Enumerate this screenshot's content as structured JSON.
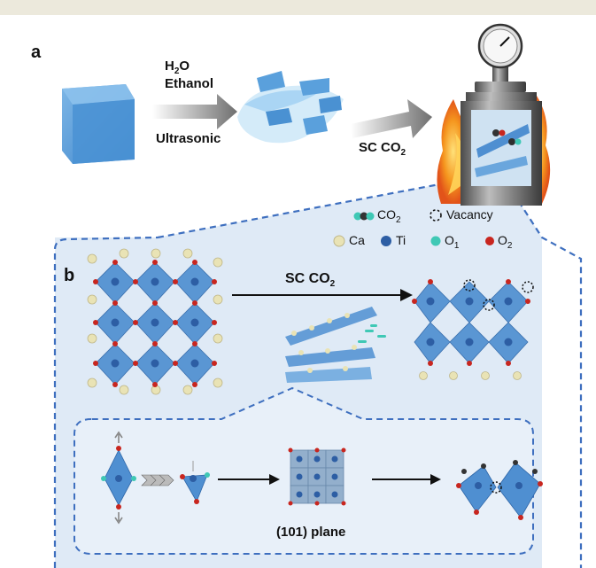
{
  "panels": {
    "a": "a",
    "b": "b"
  },
  "step1": {
    "reagent1_main": "H",
    "reagent1_sub": "2",
    "reagent1_tail": "O",
    "reagent2": "Ethanol",
    "method": "Ultrasonic"
  },
  "step2": {
    "label_main": "SC CO",
    "label_sub": "2"
  },
  "panel_b": {
    "arrow_main": "SC CO",
    "arrow_sub": "2",
    "plane_label": "(101) plane"
  },
  "legend": {
    "co2_main": "CO",
    "co2_sub": "2",
    "vacancy": "Vacancy",
    "ca": "Ca",
    "ti": "Ti",
    "o1_main": "O",
    "o1_sub": "1",
    "o2_main": "O",
    "o2_sub": "2"
  },
  "colors": {
    "cube": "#5b9ed8",
    "octahedron": "#4f8fd1",
    "ca": "#e9e3b5",
    "ti": "#2d5ea4",
    "o1": "#3fc8b5",
    "o2": "#c8261f",
    "fire": "#f28a1e",
    "region": "#d9e8f6",
    "dash": "#3e6fbf"
  }
}
